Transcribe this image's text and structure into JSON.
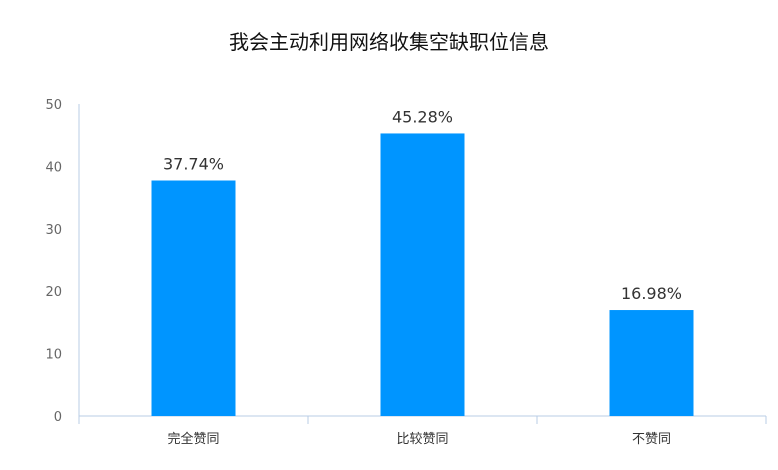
{
  "chart_data": {
    "type": "bar",
    "title": "我会主动利用网络收集空缺职位信息",
    "categories": [
      "完全赞同",
      "比较赞同",
      "不赞同"
    ],
    "values": [
      37.74,
      45.28,
      16.98
    ],
    "data_labels": [
      "37.74%",
      "45.28%",
      "16.98%"
    ],
    "yticks": [
      "0",
      "10",
      "20",
      "30",
      "40",
      "50"
    ],
    "ylim": [
      0,
      50
    ],
    "grid": false,
    "bar_color": "#0095ff",
    "axis_color": "#b8cce6"
  }
}
